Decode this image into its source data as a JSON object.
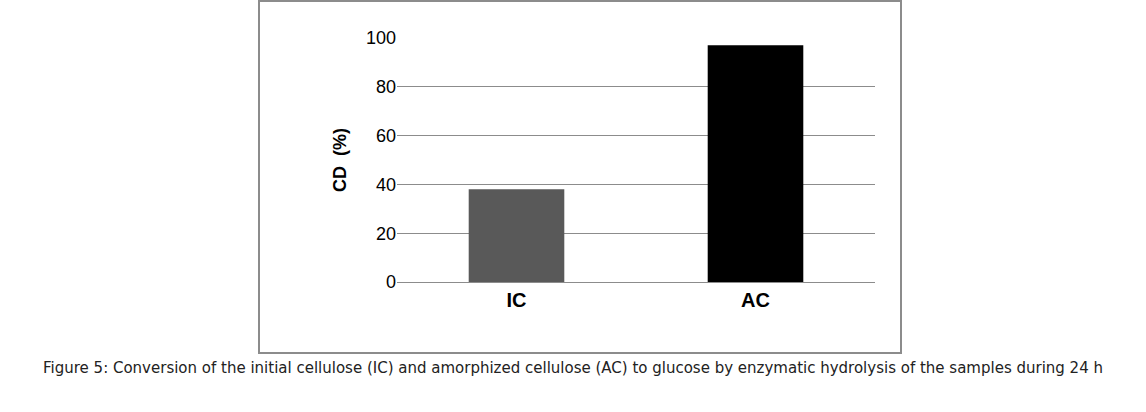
{
  "chart_data": {
    "type": "bar",
    "title": "Figure 5: Conversion of the initial cellulose (IC) and amorphized cellulose (AC) to glucose by enzymatic hydrolysis of the samples during 24 h",
    "y_label": "CD  (%)",
    "categories": [
      "IC",
      "AC"
    ],
    "values": [
      38,
      97
    ],
    "colors": [
      "#595959",
      "#000000"
    ],
    "ylim": [
      0,
      100
    ],
    "yticks": [
      0,
      20,
      40,
      60,
      80,
      100
    ],
    "grid": true
  }
}
